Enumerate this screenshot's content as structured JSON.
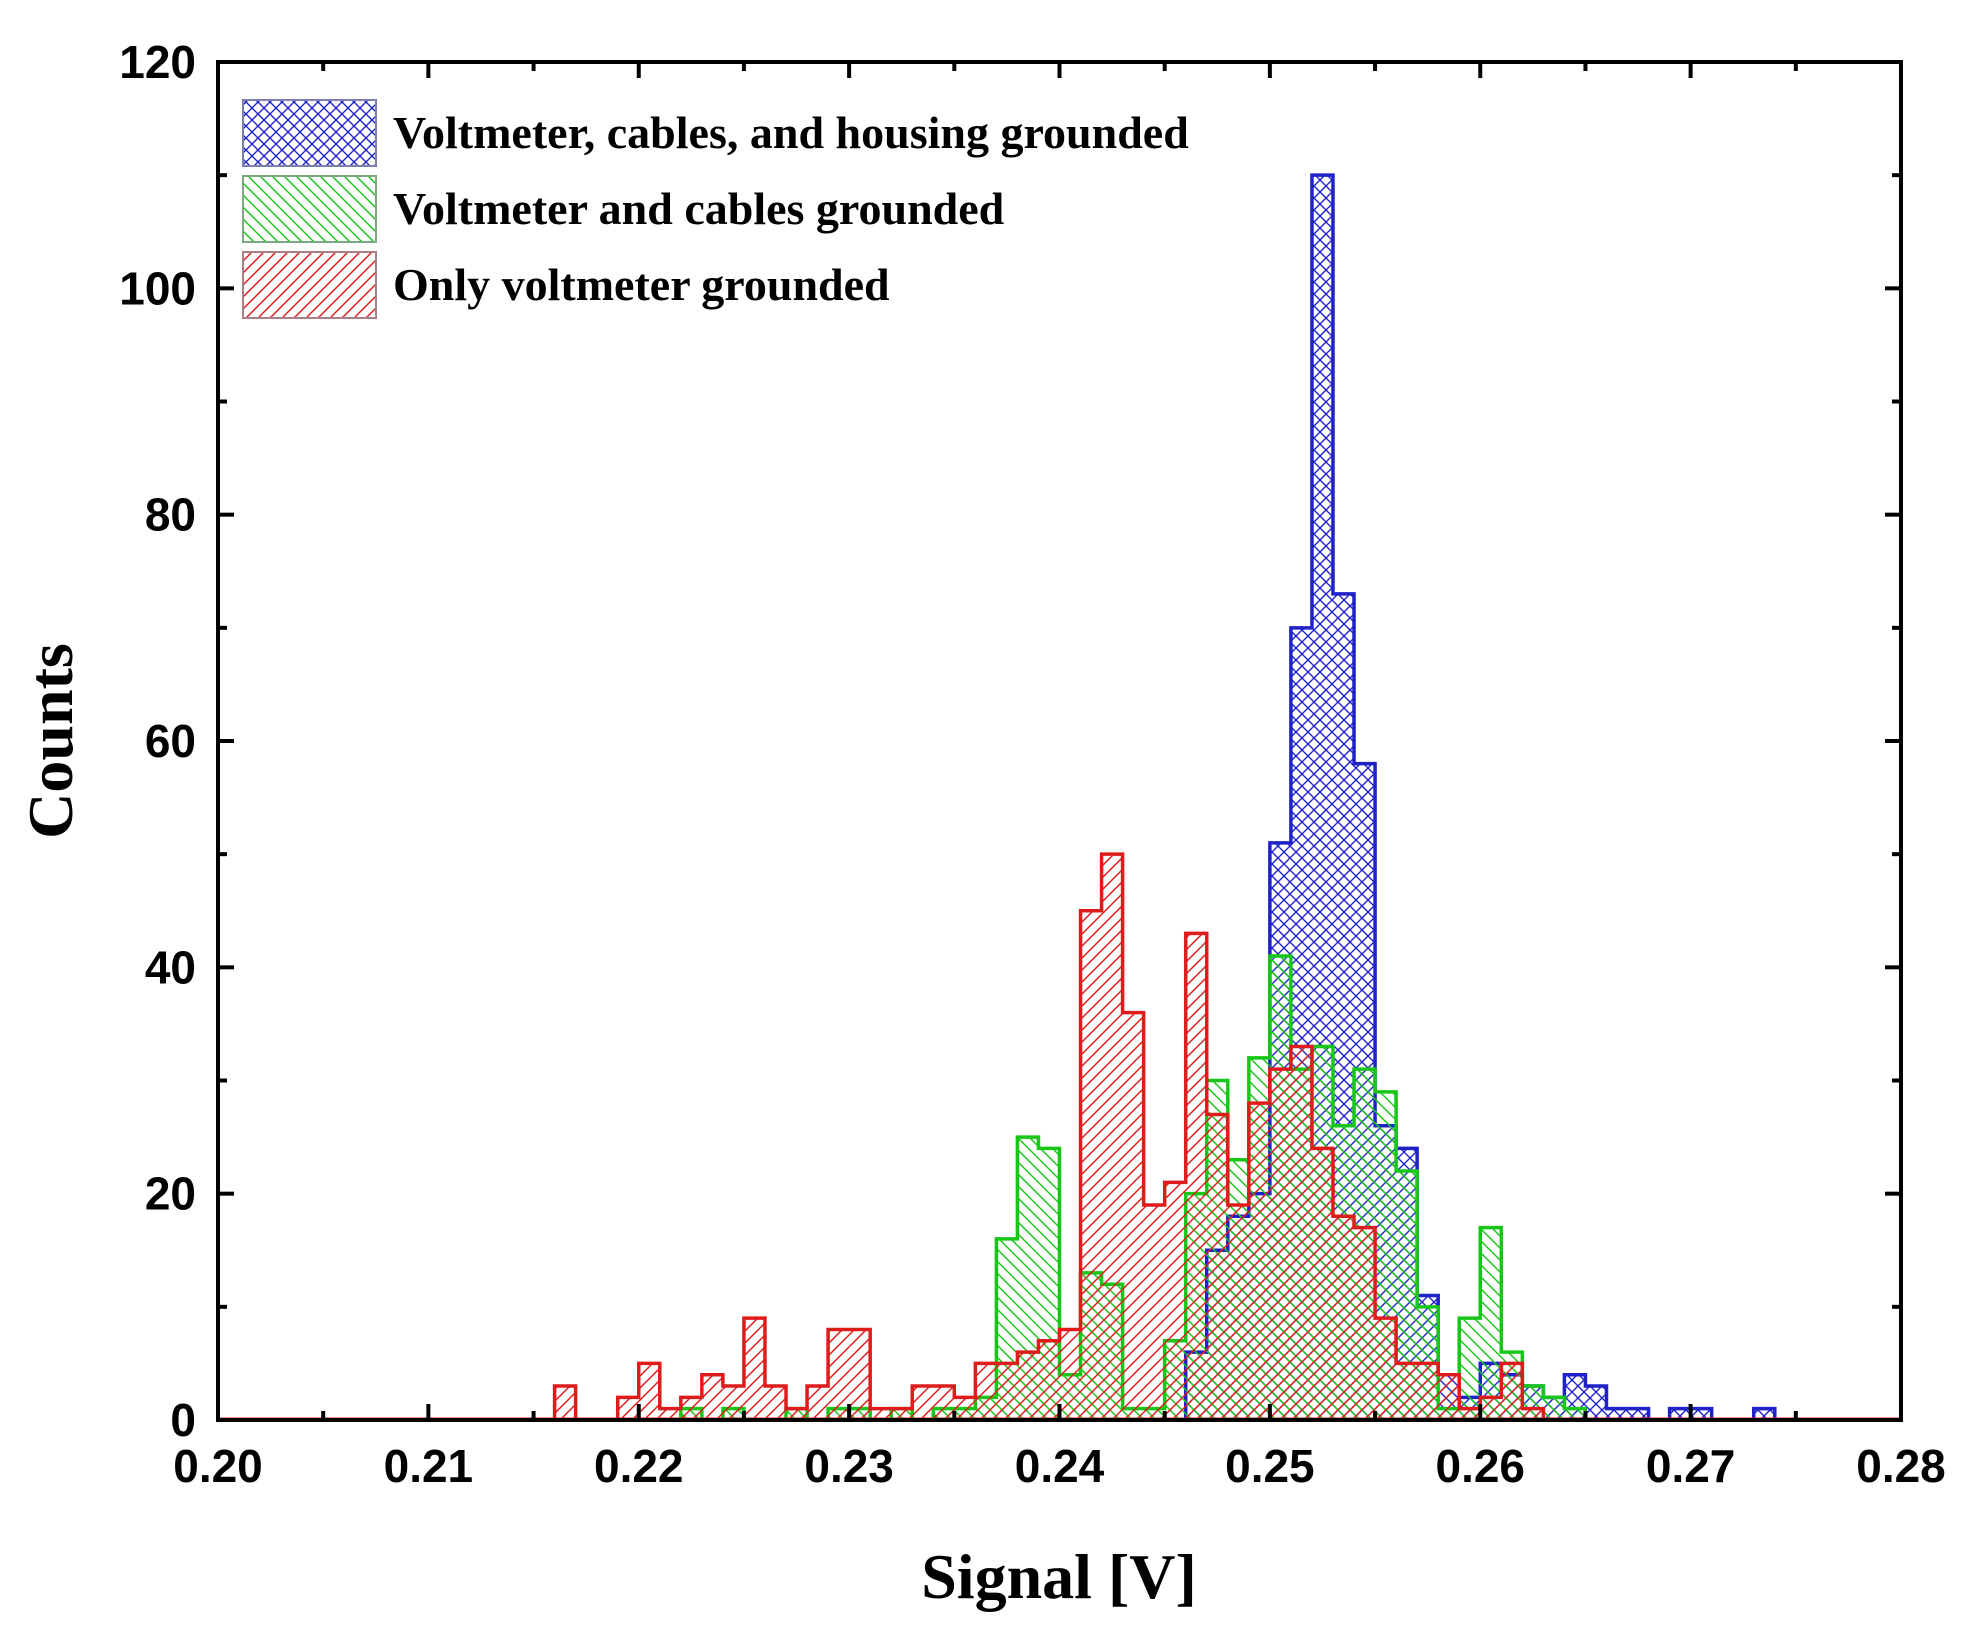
{
  "chart_data": {
    "type": "histogram",
    "xlabel": "Signal [V]",
    "ylabel": "Counts",
    "xlim": [
      0.2,
      0.28
    ],
    "ylim": [
      0,
      120
    ],
    "x_major_ticks": [
      "0.20",
      "0.21",
      "0.22",
      "0.23",
      "0.24",
      "0.25",
      "0.26",
      "0.27",
      "0.28"
    ],
    "y_major_ticks": [
      "0",
      "20",
      "40",
      "60",
      "80",
      "100",
      "120"
    ],
    "bin_width": 0.001,
    "legend_position": "top-left",
    "series": [
      {
        "name": "Voltmeter, cables, and housing grounded",
        "color": "#1f22c9",
        "hatch": "crosshatch",
        "bin_starts": [
          0.246,
          0.247,
          0.248,
          0.249,
          0.25,
          0.251,
          0.252,
          0.253,
          0.254,
          0.255,
          0.256,
          0.257,
          0.258,
          0.259,
          0.26,
          0.261,
          0.262,
          0.263,
          0.264,
          0.265,
          0.266,
          0.267,
          0.268,
          0.269,
          0.27,
          0.271,
          0.272,
          0.273,
          0.274
        ],
        "counts": [
          6,
          15,
          18,
          20,
          51,
          70,
          110,
          73,
          58,
          26,
          24,
          11,
          4,
          2,
          5,
          4,
          3,
          2,
          4,
          3,
          1,
          1,
          0,
          1,
          1,
          0,
          0,
          1,
          0
        ]
      },
      {
        "name": "Voltmeter and cables grounded",
        "color": "#17c717",
        "hatch": "backslash",
        "bin_starts": [
          0.219,
          0.22,
          0.221,
          0.222,
          0.223,
          0.224,
          0.225,
          0.226,
          0.227,
          0.228,
          0.229,
          0.23,
          0.231,
          0.232,
          0.233,
          0.234,
          0.235,
          0.236,
          0.237,
          0.238,
          0.239,
          0.24,
          0.241,
          0.242,
          0.243,
          0.244,
          0.245,
          0.246,
          0.247,
          0.248,
          0.249,
          0.25,
          0.251,
          0.252,
          0.253,
          0.254,
          0.255,
          0.256,
          0.257,
          0.258,
          0.259,
          0.26,
          0.261,
          0.262,
          0.263,
          0.264
        ],
        "counts": [
          0,
          0,
          0,
          1,
          0,
          1,
          0,
          0,
          1,
          0,
          1,
          1,
          0,
          1,
          0,
          1,
          1,
          2,
          16,
          25,
          24,
          4,
          13,
          12,
          1,
          1,
          7,
          20,
          30,
          23,
          32,
          41,
          31,
          33,
          26,
          31,
          29,
          22,
          10,
          1,
          9,
          17,
          6,
          3,
          2,
          1
        ]
      },
      {
        "name": "Only voltmeter grounded",
        "color": "#e01b1b",
        "hatch": "slash",
        "bin_starts": [
          0.216,
          0.217,
          0.218,
          0.219,
          0.22,
          0.221,
          0.222,
          0.223,
          0.224,
          0.225,
          0.226,
          0.227,
          0.228,
          0.229,
          0.23,
          0.231,
          0.232,
          0.233,
          0.234,
          0.235,
          0.236,
          0.237,
          0.238,
          0.239,
          0.24,
          0.241,
          0.242,
          0.243,
          0.244,
          0.245,
          0.246,
          0.247,
          0.248,
          0.249,
          0.25,
          0.251,
          0.252,
          0.253,
          0.254,
          0.255,
          0.256,
          0.257,
          0.258,
          0.259,
          0.26,
          0.261,
          0.262
        ],
        "counts": [
          3,
          0,
          0,
          2,
          5,
          1,
          2,
          4,
          3,
          9,
          3,
          1,
          3,
          8,
          8,
          1,
          1,
          3,
          3,
          2,
          5,
          5,
          6,
          7,
          8,
          45,
          50,
          36,
          19,
          21,
          43,
          27,
          19,
          28,
          31,
          33,
          24,
          18,
          17,
          9,
          5,
          5,
          4,
          1,
          2,
          5,
          1
        ]
      }
    ]
  }
}
